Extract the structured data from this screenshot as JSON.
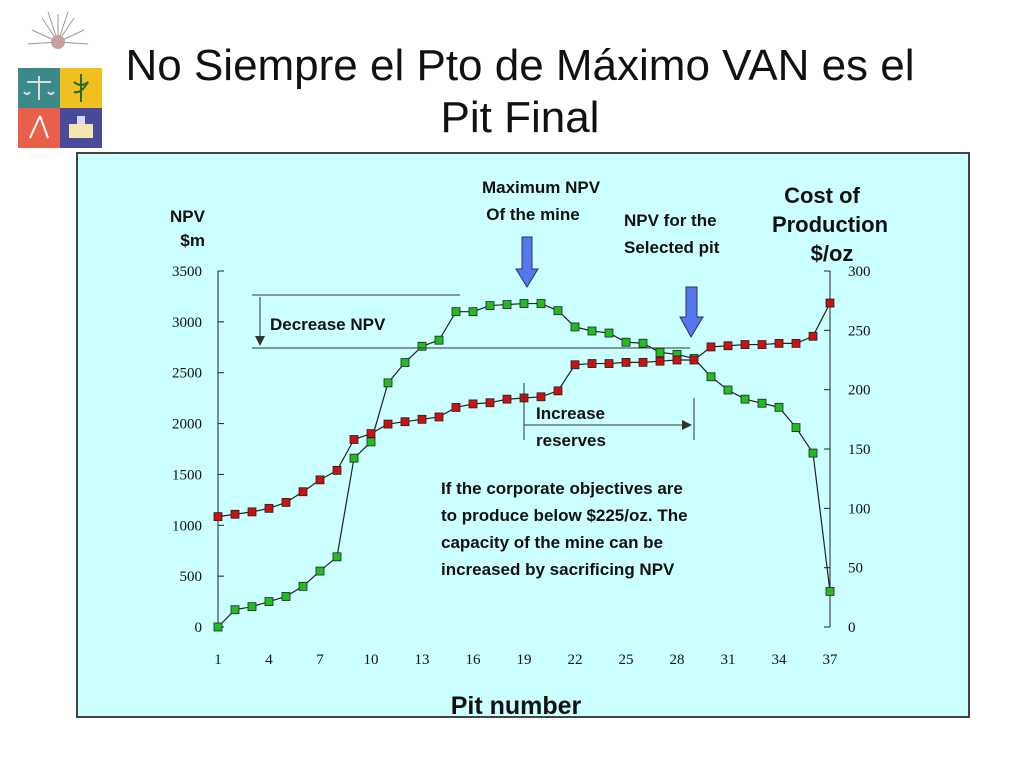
{
  "slide": {
    "title_line1": "No Siempre el Pto de Máximo VAN es el",
    "title_line2": "Pit Final"
  },
  "chart_data": {
    "type": "line",
    "xlabel": "Pit number",
    "ylabel_left": [
      "NPV",
      "$m"
    ],
    "ylabel_right": [
      "Cost of",
      "Production",
      "$/oz"
    ],
    "x": [
      1,
      2,
      3,
      4,
      5,
      6,
      7,
      8,
      9,
      10,
      11,
      12,
      13,
      14,
      15,
      16,
      17,
      18,
      19,
      20,
      21,
      22,
      23,
      24,
      25,
      26,
      27,
      28,
      29,
      30,
      31,
      32,
      33,
      34,
      35,
      36,
      37
    ],
    "x_ticks": [
      1,
      4,
      7,
      10,
      13,
      16,
      19,
      22,
      25,
      28,
      31,
      34,
      37
    ],
    "y_left_ticks": [
      0,
      500,
      1000,
      1500,
      2000,
      2500,
      3000,
      3500
    ],
    "y_right_ticks": [
      0,
      50,
      100,
      150,
      200,
      250,
      300
    ],
    "ylim_left": [
      0,
      3500
    ],
    "ylim_right": [
      0,
      300
    ],
    "series": [
      {
        "axis": "left",
        "color": "#22bb22",
        "values": [
          0,
          170,
          200,
          250,
          300,
          400,
          550,
          690,
          1660,
          1820,
          2400,
          2600,
          2760,
          2820,
          3100,
          3100,
          3160,
          3170,
          3180,
          3180,
          3110,
          2950,
          2910,
          2890,
          2800,
          2790,
          2700,
          2680,
          2640,
          2460,
          2330,
          2240,
          2200,
          2160,
          1960,
          1710,
          350
        ]
      },
      {
        "axis": "right",
        "color": "#cc1111",
        "values": [
          93,
          95,
          97,
          100,
          105,
          114,
          124,
          132,
          158,
          163,
          171,
          173,
          175,
          177,
          185,
          188,
          189,
          192,
          193,
          194,
          199,
          221,
          222,
          222,
          223,
          223,
          224,
          225,
          225,
          236,
          237,
          238,
          238,
          239,
          239,
          245,
          273
        ]
      }
    ],
    "annotations": {
      "max_npv": [
        "Maximum NPV",
        "Of the mine"
      ],
      "selected_pit": [
        "NPV for the",
        "Selected pit"
      ],
      "decrease": "Decrease NPV",
      "increase": [
        "Increase",
        "reserves"
      ],
      "note": [
        "If the corporate objectives are",
        "to produce below $225/oz. The",
        "capacity of the mine can be",
        "increased by sacrificing NPV"
      ]
    },
    "colors": {
      "panel": "#ccffff",
      "arrow": "#5577ee"
    }
  }
}
